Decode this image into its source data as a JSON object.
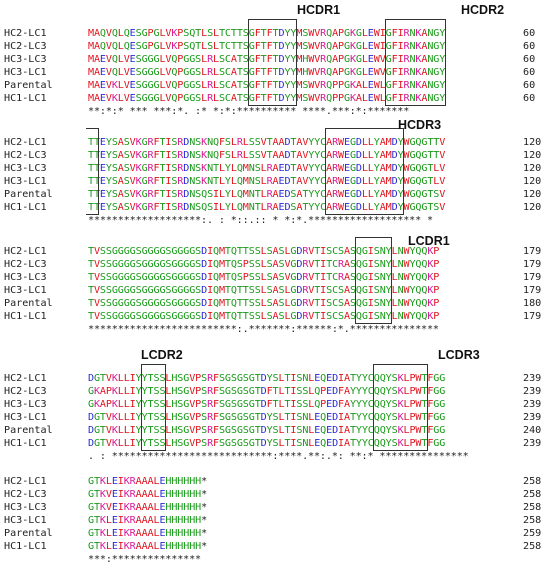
{
  "region_labels": {
    "hcdr1": "HCDR1",
    "hcdr2": "HCDR2",
    "hcdr3": "HCDR3",
    "lcdr1": "LCDR1",
    "lcdr2": "LCDR2",
    "lcdr3": "LCDR3"
  },
  "colors": {
    "red": "#e0141e",
    "green": "#1a9a1a",
    "blue": "#2a2ad6",
    "magenta": "#d6189a"
  },
  "blocks": [
    {
      "rows": [
        {
          "name": "HC2-LC1",
          "seq": "MAQVQLQESGPGLVKPSQTLSLTCTTSGFTFTDYYMSWVRQAPGKGLEWIGFIRNKANGY",
          "end": "60"
        },
        {
          "name": "HC2-LC3",
          "seq": "MAQVQLQESGPGLVKPSQTLSLTCTTSGFTFTDYYMSWVRQAPGKGLEWIGFIRNKANGY",
          "end": "60"
        },
        {
          "name": "HC3-LC3",
          "seq": "MAEVQLVESGGGLVQPGGSLRLSCATSGFTFTDYYMHWVRQAPGKGLEWVGFIRNKANGY",
          "end": "60"
        },
        {
          "name": "HC3-LC1",
          "seq": "MAEVQLVESGGGLVQPGGSLRLSCATSGFTFTDYYMHWVRQAPGKGLEWVGFIRNKANGY",
          "end": "60"
        },
        {
          "name": "Parental",
          "seq": "MAEVKLVESGGGLVQPGGSLRLSCATSGFTFTDYYMSWVRQPPGKALEWLGFIRNKANGY",
          "end": "60"
        },
        {
          "name": "HC1-LC1",
          "seq": "MAEVKLVESGGGLVQPGGSLRLSCATSGFTFTDYYMSWVRQPPGKALEWLGFIRNKANGY",
          "end": "60"
        }
      ],
      "consensus": "**:*:* *** ***:*. :* *:*:********** ****.***:*:*******"
    },
    {
      "rows": [
        {
          "name": "HC2-LC1",
          "seq": "TTEYSASVKGRFTISRDNSKNQFSLRLSSVTAADTAVYYCARWEGDLLYAMDYWGQGTTV",
          "end": "120"
        },
        {
          "name": "HC2-LC3",
          "seq": "TTEYSASVKGRFTISRDNSKNQFSLRLSSVTAADTAVYYCARWEGDLLYAMDYWGQGTTV",
          "end": "120"
        },
        {
          "name": "HC3-LC3",
          "seq": "TTEYSASVKGRFTISRDNSKNTLYLQMNSLRAEDTAVYYCARWEGDLLYAMDYWGQGTLV",
          "end": "120"
        },
        {
          "name": "HC3-LC1",
          "seq": "TTEYSASVKGRFTISRDNSKNTLYLQMNSLRAEDTAVYYCARWEGDLLYAMDYWGQGTLV",
          "end": "120"
        },
        {
          "name": "Parental",
          "seq": "TTEYSASVKGRFTISRDNSQSILYLQMNTLRAEDSATYYCARWEGDLLYAMDYWGQGTSV",
          "end": "120"
        },
        {
          "name": "HC1-LC1",
          "seq": "TTEYSASVKGRFTISRDNSQSILYLQMNTLRAEDSATYYCARWEGDLLYAMDYWGQGTSV",
          "end": "120"
        }
      ],
      "consensus": "*******************:. : *::.:: * *:*.******************* *"
    },
    {
      "rows": [
        {
          "name": "HC2-LC1",
          "seq": "TVSSGGGGSGGGGSGGGGSDIQMTQTTSSLSASLGDRVTISCSASQGISNYLNWYQQKP",
          "end": "179"
        },
        {
          "name": "HC2-LC3",
          "seq": "TVSSGGGGSGGGGSGGGGSDIQMTQSPSSLSASVGDRVTITCRASQGISNYLNWYQQKP",
          "end": "179"
        },
        {
          "name": "HC3-LC3",
          "seq": "TVSSGGGGSGGGGSGGGGSDIQMTQSPSSLSASVGDRVTITCRASQGISNYLNWYQQKP",
          "end": "179"
        },
        {
          "name": "HC3-LC1",
          "seq": "TVSSGGGGSGGGGSGGGGSDIQMTQTTSSLSASLGDRVTISCSASQGISNYLNWYQQKP",
          "end": "179"
        },
        {
          "name": "Parental",
          "seq": "TVSSGGGGSGGGGSGGGGSDIQMTQTTSSLSASLGDRVTISCSASQGISNYLNWYQQKP",
          "end": "180"
        },
        {
          "name": "HC1-LC1",
          "seq": "TVSSGGGGSGGGGSGGGGSDIQMTQTTSSLSASLGDRVTISCSASQGISNYLNWYQQKP",
          "end": "179"
        }
      ],
      "consensus": "*************************:.*******:******:*.***************"
    },
    {
      "rows": [
        {
          "name": "HC2-LC1",
          "seq": "DGTVKLLIYYTSSLHSGVPSRFSGSGSGTDYSLTISNLEQEDIATYYCQQYSKLPWTFGG",
          "end": "239"
        },
        {
          "name": "HC2-LC3",
          "seq": "GKAPKLLIYYTSSLHSGVPSRFSGSGSGTDFTLTISSLQPEDFAYYYCQQYSKLPWTFGG",
          "end": "239"
        },
        {
          "name": "HC3-LC3",
          "seq": "GKAPKLLIYYTSSLHSGVPSRFSGSGSGTDFTLTISSLQPEDFAYYYCQQYSKLPWTFGG",
          "end": "239"
        },
        {
          "name": "HC3-LC1",
          "seq": "DGTVKLLIYYTSSLHSGVPSRFSGSGSGTDYSLTISNLEQEDIATYYCQQYSKLPWTFGG",
          "end": "239"
        },
        {
          "name": "Parental",
          "seq": "DGTVKLLIYYTSSLHSGVPSRFSGSGSGTDYSLTISNLEQEDIATYYCQQYSKLPWTFGG",
          "end": "240"
        },
        {
          "name": "HC1-LC1",
          "seq": "DGTVKLLIYYTSSLHSGVPSRFSGSGSGTDYSLTISNLEQEDIATYYCQQYSKLPWTFGG",
          "end": "239"
        }
      ],
      "consensus": ". : ***************************:****.**:.*: **:* ***************"
    },
    {
      "rows": [
        {
          "name": "HC2-LC1",
          "seq": "GTKLEIKRAAALEHHHHHH*",
          "end": "258"
        },
        {
          "name": "HC2-LC3",
          "seq": "GTKVEIKRAAALEHHHHHH*",
          "end": "258"
        },
        {
          "name": "HC3-LC3",
          "seq": "GTKVEIKRAAALEHHHHHH*",
          "end": "258"
        },
        {
          "name": "HC3-LC1",
          "seq": "GTKLEIKRAAALEHHHHHH*",
          "end": "258"
        },
        {
          "name": "Parental",
          "seq": "GTKLEIKRAAALEHHHHHH*",
          "end": "259"
        },
        {
          "name": "HC1-LC1",
          "seq": "GTKLEIKRAAALEHHHHHH*",
          "end": "258"
        }
      ],
      "consensus": "***:***************"
    }
  ]
}
